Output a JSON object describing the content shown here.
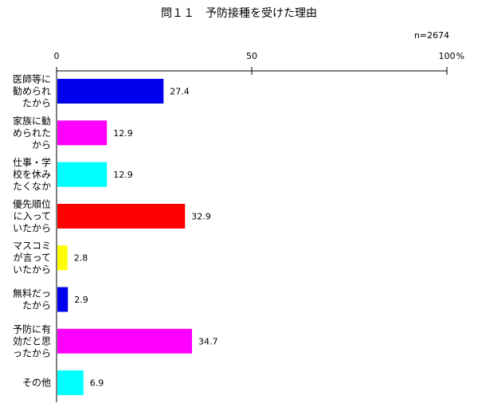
{
  "chart_data": {
    "type": "bar",
    "orientation": "horizontal",
    "title": "問１１　予防接種を受けた理由",
    "note": "n=2674",
    "xlim": [
      0,
      100
    ],
    "ticks": [
      "0",
      "50",
      "100"
    ],
    "unit": "%",
    "categories": [
      [
        "医師等に",
        "勧められ",
        "たから"
      ],
      [
        "家族に勧",
        "められた",
        "から"
      ],
      [
        "仕事・学",
        "校を休み",
        "たくなか"
      ],
      [
        "優先順位",
        "に入って",
        "いたから"
      ],
      [
        "マスコミ",
        "が言って",
        "いたから"
      ],
      [
        "無料だっ",
        "たから"
      ],
      [
        "予防に有",
        "効だと思",
        "ったから"
      ],
      [
        "その他"
      ]
    ],
    "values": [
      27.4,
      12.9,
      12.9,
      32.9,
      2.8,
      2.9,
      34.7,
      6.9
    ],
    "value_labels": [
      "27.4",
      "12.9",
      "12.9",
      "32.9",
      "2.8",
      "2.9",
      "34.7",
      "6.9"
    ],
    "colors": [
      "#0000ee",
      "#ff00ff",
      "#00ffff",
      "#ff0000",
      "#ffff00",
      "#0000ee",
      "#ff00ff",
      "#00ffff"
    ]
  }
}
